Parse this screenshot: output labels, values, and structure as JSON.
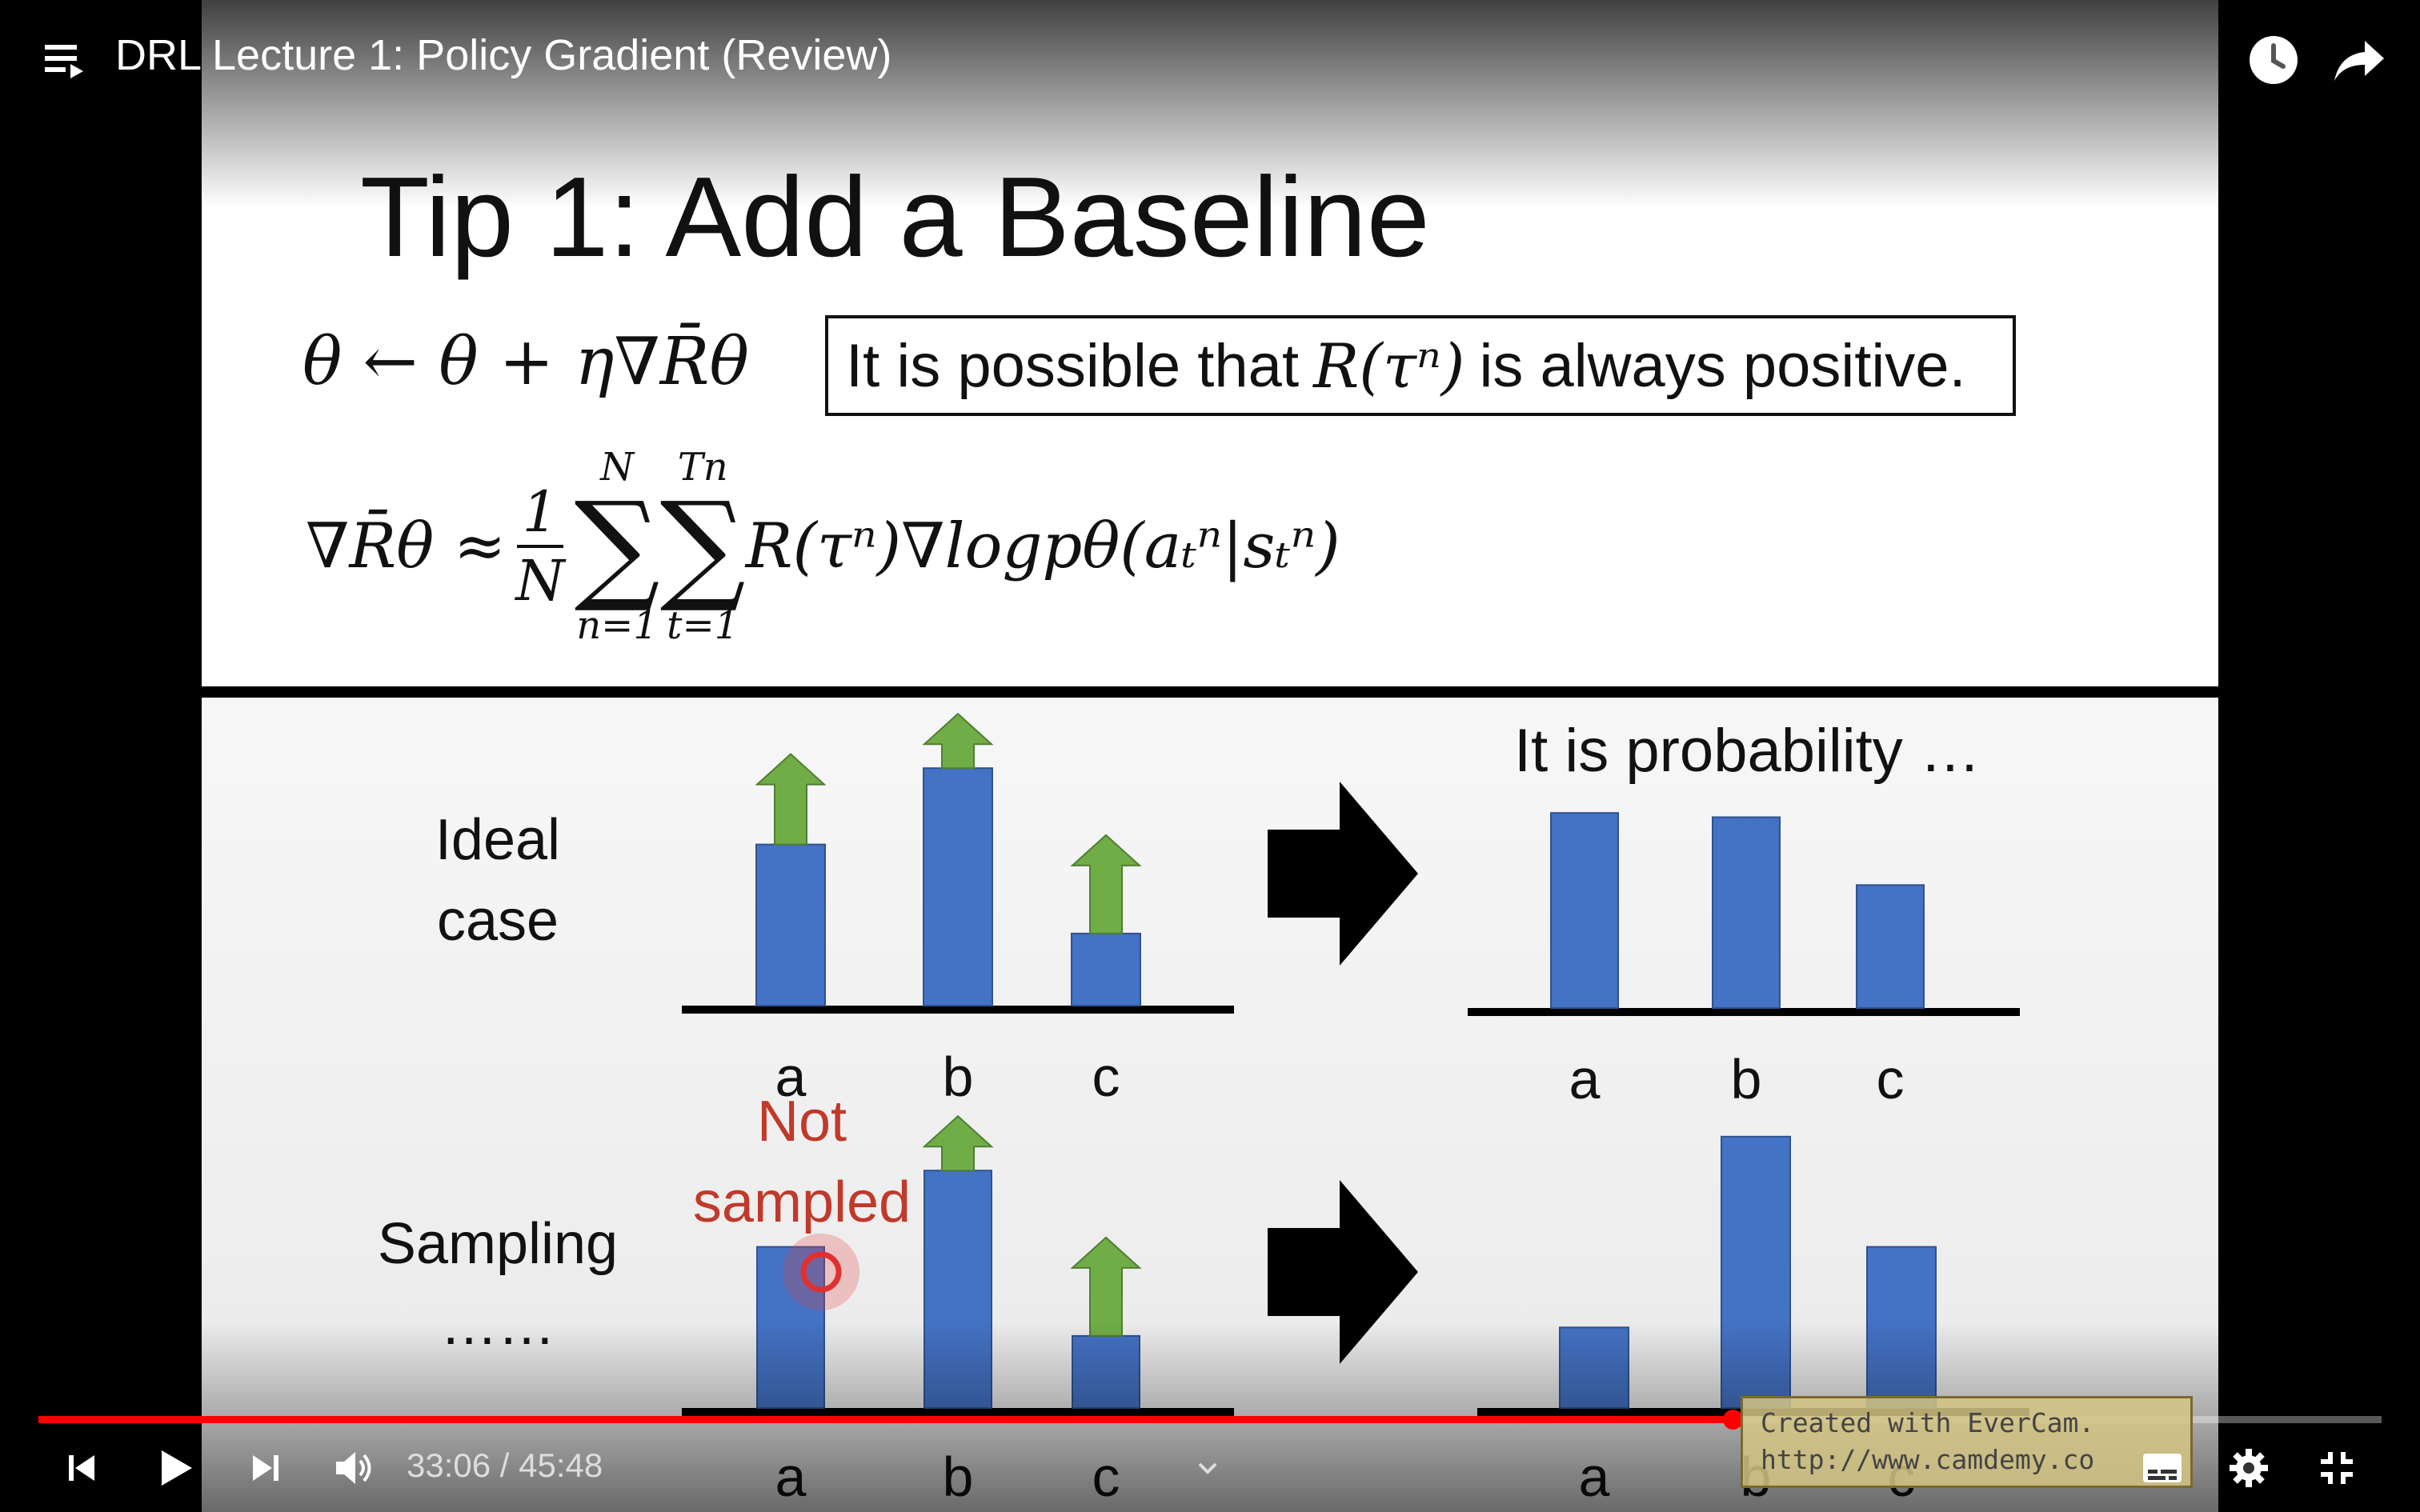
{
  "player": {
    "video_title": "DRL Lecture 1: Policy Gradient (Review)",
    "current_time": "33:06",
    "separator": "/",
    "duration": "45:48",
    "progress_fraction": 0.723,
    "accent_color": "#ff0000",
    "icons": {
      "playlist": "playlist-icon",
      "watch_later": "clock-icon",
      "share": "share-arrow-icon",
      "prev": "skip-previous-icon",
      "play": "play-icon",
      "next": "skip-next-icon",
      "volume": "volume-icon",
      "chevron": "chevron-down-icon",
      "subtitles": "subtitles-icon",
      "settings": "gear-icon",
      "exit_fullscreen": "exit-fullscreen-icon"
    }
  },
  "slide": {
    "title": "Tip 1: Add a Baseline",
    "update_rule": "θ ← θ + η∇R̄θ",
    "note_prefix": "It is possible that",
    "note_math": "R(τⁿ)",
    "note_suffix": "is always positive.",
    "gradient_lhs": "∇R̄θ ≈",
    "frac_num": "1",
    "frac_den": "N",
    "sum1_top": "N",
    "sum1_bottom": "n=1",
    "sum2_top": "Tn",
    "sum2_bottom": "t=1",
    "gradient_rhs": "R(τⁿ)∇logpθ(aₜⁿ|sₜⁿ)",
    "row1_label_1": "Ideal",
    "row1_label_2": "case",
    "row2_label_1": "Sampling",
    "row2_label_2": "……",
    "not_sampled_1": "Not",
    "not_sampled_2": "sampled",
    "prob_title": "It is probability …",
    "watermark_1": "Created with EverCam.",
    "watermark_2": "http://www.camdemy.co"
  },
  "chart_data": [
    {
      "type": "bar",
      "name": "Ideal case (before)",
      "categories": [
        "a",
        "b",
        "c"
      ],
      "values": [
        3.8,
        5.6,
        1.7
      ],
      "increase_arrows": [
        true,
        true,
        true
      ],
      "ylim": [
        0,
        7
      ]
    },
    {
      "type": "bar",
      "name": "Ideal case (probability)",
      "categories": [
        "a",
        "b",
        "c"
      ],
      "values": [
        4.6,
        4.5,
        2.9
      ],
      "ylim": [
        0,
        7
      ]
    },
    {
      "type": "bar",
      "name": "Sampling (before)",
      "categories": [
        "a",
        "b",
        "c"
      ],
      "values": [
        3.8,
        5.6,
        1.7
      ],
      "increase_arrows": [
        false,
        true,
        true
      ],
      "ylim": [
        0,
        7
      ]
    },
    {
      "type": "bar",
      "name": "Sampling (probability)",
      "categories": [
        "a",
        "b",
        "c"
      ],
      "values": [
        1.9,
        6.4,
        3.8
      ],
      "ylim": [
        0,
        7
      ]
    }
  ]
}
